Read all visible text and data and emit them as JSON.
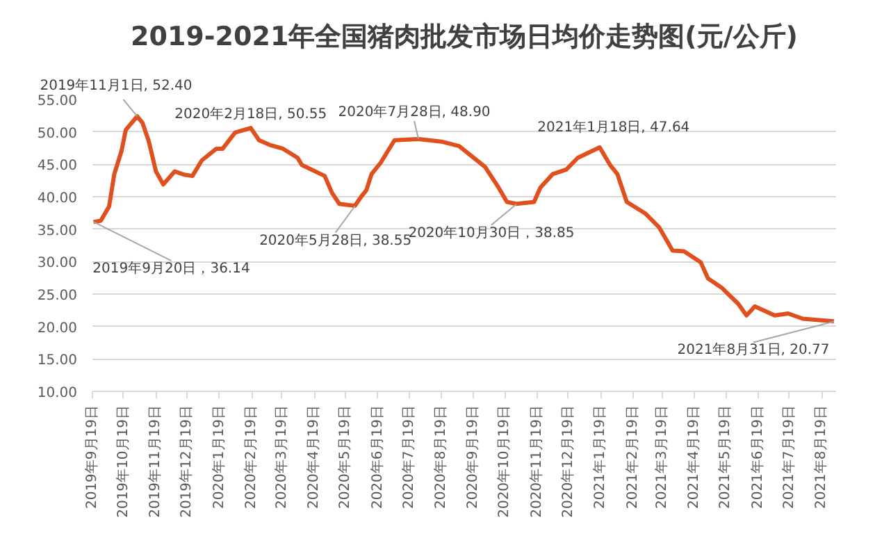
{
  "chart_data": {
    "type": "line",
    "title": "2019-2021年全国猪肉批发市场日均价走势图(元/公斤)",
    "x": [
      "2019-09-20",
      "2019-09-27",
      "2019-10-05",
      "2019-10-10",
      "2019-10-17",
      "2019-10-21",
      "2019-11-01",
      "2019-11-06",
      "2019-11-12",
      "2019-11-19",
      "2019-11-26",
      "2019-12-07",
      "2019-12-16",
      "2019-12-24",
      "2020-01-02",
      "2020-01-16",
      "2020-01-22",
      "2020-02-03",
      "2020-02-18",
      "2020-02-26",
      "2020-03-07",
      "2020-03-20",
      "2020-04-03",
      "2020-04-07",
      "2020-04-29",
      "2020-05-06",
      "2020-05-13",
      "2020-05-28",
      "2020-06-03",
      "2020-06-08",
      "2020-06-13",
      "2020-06-22",
      "2020-07-05",
      "2020-07-28",
      "2020-08-19",
      "2020-09-05",
      "2020-09-30",
      "2020-10-13",
      "2020-10-21",
      "2020-10-30",
      "2020-11-16",
      "2020-11-22",
      "2020-12-04",
      "2020-12-17",
      "2020-12-28",
      "2021-01-18",
      "2021-01-28",
      "2021-02-04",
      "2021-02-13",
      "2021-03-03",
      "2021-03-16",
      "2021-03-29",
      "2021-04-09",
      "2021-04-25",
      "2021-05-02",
      "2021-05-15",
      "2021-05-31",
      "2021-06-08",
      "2021-06-16",
      "2021-07-05",
      "2021-07-18",
      "2021-08-01",
      "2021-08-31"
    ],
    "series": [
      {
        "color": "#e0501e",
        "values": [
          36.1,
          36.3,
          38.5,
          43.5,
          47.1,
          50.3,
          52.4,
          51.4,
          48.6,
          43.9,
          41.9,
          43.9,
          43.4,
          43.2,
          45.6,
          47.4,
          47.4,
          49.9,
          50.6,
          48.7,
          48.0,
          47.4,
          46.0,
          44.9,
          43.2,
          40.6,
          38.9,
          38.6,
          40.0,
          41.0,
          43.5,
          45.3,
          48.7,
          48.9,
          48.5,
          47.8,
          44.6,
          41.4,
          39.2,
          38.9,
          39.2,
          41.4,
          43.5,
          44.2,
          46.0,
          47.6,
          44.9,
          43.5,
          39.2,
          37.4,
          35.3,
          31.7,
          31.6,
          29.9,
          27.4,
          26.0,
          23.5,
          21.7,
          23.1,
          21.7,
          22.0,
          21.2,
          20.8
        ]
      }
    ],
    "xlim": [
      "2019-09-19",
      "2021-09-02"
    ],
    "xticks": [
      {
        "value": "2019-09-19",
        "label": "2019年9月19日"
      },
      {
        "value": "2019-10-19",
        "label": "2019年10月19日"
      },
      {
        "value": "2019-11-19",
        "label": "2019年11月19日"
      },
      {
        "value": "2019-12-19",
        "label": "2019年12月19日"
      },
      {
        "value": "2020-01-19",
        "label": "2020年1月19日"
      },
      {
        "value": "2020-02-19",
        "label": "2020年2月19日"
      },
      {
        "value": "2020-03-19",
        "label": "2020年3月19日"
      },
      {
        "value": "2020-04-19",
        "label": "2020年4月19日"
      },
      {
        "value": "2020-05-19",
        "label": "2020年5月19日"
      },
      {
        "value": "2020-06-19",
        "label": "2020年6月19日"
      },
      {
        "value": "2020-07-19",
        "label": "2020年7月19日"
      },
      {
        "value": "2020-08-19",
        "label": "2020年8月19日"
      },
      {
        "value": "2020-09-19",
        "label": "2020年9月19日"
      },
      {
        "value": "2020-10-19",
        "label": "2020年10月19日"
      },
      {
        "value": "2020-11-19",
        "label": "2020年11月19日"
      },
      {
        "value": "2020-12-19",
        "label": "2020年12月19日"
      },
      {
        "value": "2021-01-19",
        "label": "2021年1月19日"
      },
      {
        "value": "2021-02-19",
        "label": "2021年2月19日"
      },
      {
        "value": "2021-03-19",
        "label": "2021年3月19日"
      },
      {
        "value": "2021-04-19",
        "label": "2021年4月19日"
      },
      {
        "value": "2021-05-19",
        "label": "2021年5月19日"
      },
      {
        "value": "2021-06-19",
        "label": "2021年6月19日"
      },
      {
        "value": "2021-07-19",
        "label": "2021年7月19日"
      },
      {
        "value": "2021-08-19",
        "label": "2021年8月19日"
      }
    ],
    "ylim": [
      10,
      55
    ],
    "yticks": [
      {
        "value": 10,
        "label": "10.00"
      },
      {
        "value": 15,
        "label": "15.00"
      },
      {
        "value": 20,
        "label": "20.00"
      },
      {
        "value": 25,
        "label": "25.00"
      },
      {
        "value": 30,
        "label": "30.00"
      },
      {
        "value": 35,
        "label": "35.00"
      },
      {
        "value": 40,
        "label": "40.00"
      },
      {
        "value": 45,
        "label": "45.00"
      },
      {
        "value": 50,
        "label": "50.00"
      },
      {
        "value": 55,
        "label": "55.00"
      }
    ],
    "grid": "y",
    "annotations": [
      {
        "text": "2019年9月20日，36.14",
        "x": "2019-09-20",
        "y": 36.14
      },
      {
        "text": "2019年11月1日, 52.40",
        "x": "2019-11-01",
        "y": 52.4
      },
      {
        "text": "2020年2月18日, 50.55",
        "x": "2020-02-18",
        "y": 50.55
      },
      {
        "text": "2020年5月28日, 38.55",
        "x": "2020-05-28",
        "y": 38.55
      },
      {
        "text": "2020年7月28日, 48.90",
        "x": "2020-07-28",
        "y": 48.9
      },
      {
        "text": "2020年10月30日，38.85",
        "x": "2020-10-30",
        "y": 38.85
      },
      {
        "text": "2021年1月18日, 47.64",
        "x": "2021-01-18",
        "y": 47.64
      },
      {
        "text": "2021年8月31日, 20.77",
        "x": "2021-08-31",
        "y": 20.77
      }
    ]
  }
}
